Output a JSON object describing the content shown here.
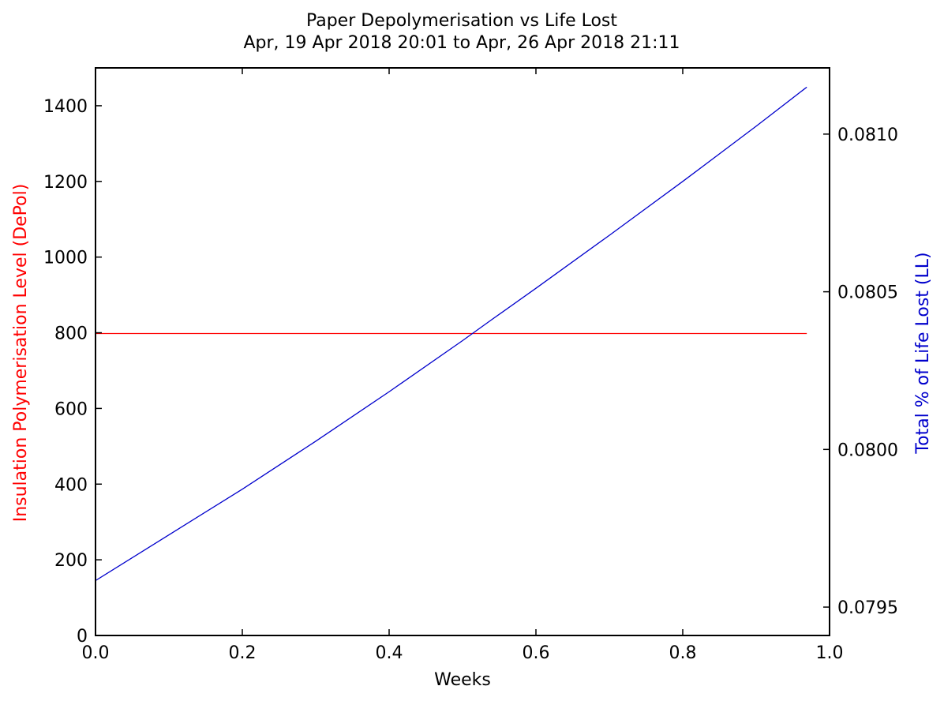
{
  "chart_data": {
    "type": "line",
    "title": "Paper Depolymerisation vs Life Lost",
    "subtitle": "Apr, 19 Apr 2018 20:01 to Apr, 26 Apr 2018 21:11",
    "xlabel": "Weeks",
    "ylabel_left": "Insulation Polymerisation Level (DePol)",
    "ylabel_right": "Total % of Life Lost (LL)",
    "xlim": [
      0.0,
      1.0
    ],
    "ylim_left": [
      0,
      1500
    ],
    "ylim_right": [
      0.07941,
      0.08121
    ],
    "xticks": [
      "0.0",
      "0.2",
      "0.4",
      "0.6",
      "0.8",
      "1.0"
    ],
    "yticks_left": [
      "0",
      "200",
      "400",
      "600",
      "800",
      "1000",
      "1200",
      "1400"
    ],
    "yticks_right": [
      "0.0795",
      "0.0800",
      "0.0805",
      "0.0810"
    ],
    "grid": false,
    "colors": {
      "left_series": "#ff0000",
      "right_series": "#0000cc",
      "left_label": "#ff0000",
      "right_label": "#0000cc",
      "axes": "#000000"
    },
    "series": [
      {
        "axis": "left",
        "color": "#ff0000",
        "x": [
          0.0,
          0.969
        ],
        "y": [
          798,
          798
        ]
      },
      {
        "axis": "right",
        "color": "#0000cc",
        "x": [
          0.0,
          0.1,
          0.2,
          0.3,
          0.4,
          0.5,
          0.54,
          0.6,
          0.7,
          0.8,
          0.9,
          0.969
        ],
        "y": [
          0.079584,
          0.079729,
          0.079874,
          0.080026,
          0.080183,
          0.080345,
          0.080412,
          0.080511,
          0.080679,
          0.08085,
          0.081025,
          0.081149
        ]
      }
    ]
  }
}
